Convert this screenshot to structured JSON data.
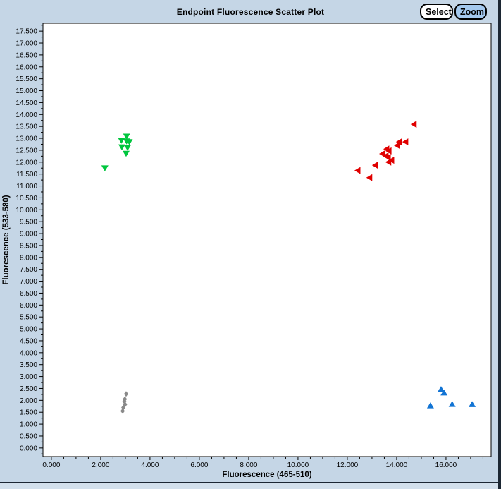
{
  "window": {
    "background": "#C5D6E6",
    "frame_border_color": "#1C2733",
    "bottom_strip_color": "#D3E0EC"
  },
  "header": {
    "title": "Endpoint Fluorescence Scatter Plot",
    "select_label": "Select",
    "zoom_label": "Zoom",
    "zoom_active_color": "#A4C9EE",
    "select_bg_color": "#FFFFFF"
  },
  "chart_data": {
    "type": "scatter",
    "title": "Endpoint Fluorescence Scatter Plot",
    "xlabel": "Fluorescence (465-510)",
    "ylabel": "Fluorescence (533-580)",
    "xlim": [
      -0.34,
      17.83
    ],
    "ylim": [
      -0.36,
      17.83
    ],
    "x_major_ticks": [
      0,
      2,
      4,
      6,
      8,
      10,
      12,
      14,
      16
    ],
    "y_major_ticks": [
      0,
      0.5,
      1,
      1.5,
      2,
      2.5,
      3,
      3.5,
      4,
      4.5,
      5,
      5.5,
      6,
      6.5,
      7,
      7.5,
      8,
      8.5,
      9,
      9.5,
      10,
      10.5,
      11,
      11.5,
      12,
      12.5,
      13,
      13.5,
      14,
      14.5,
      15,
      15.5,
      16,
      16.5,
      17,
      17.5
    ],
    "x_minor_step": 0.5,
    "y_minor_step": 0.25,
    "tick_decimals": 3,
    "grid": false,
    "legend": "none",
    "plot_bg": "#FFFFFF",
    "axis_color": "#000000",
    "series": [
      {
        "name": "green-cluster",
        "marker": "triangle-down",
        "color": "#00C63E",
        "points": [
          [
            3.05,
            13.09
          ],
          [
            2.84,
            12.92
          ],
          [
            3.05,
            12.89
          ],
          [
            3.16,
            12.86
          ],
          [
            2.86,
            12.64
          ],
          [
            3.09,
            12.62
          ],
          [
            3.03,
            12.37
          ],
          [
            2.17,
            11.76
          ]
        ]
      },
      {
        "name": "red-cluster",
        "marker": "triangle-left",
        "color": "#E00000",
        "points": [
          [
            14.71,
            13.59
          ],
          [
            14.37,
            12.85
          ],
          [
            14.11,
            12.85
          ],
          [
            14.03,
            12.7
          ],
          [
            13.6,
            12.55
          ],
          [
            13.69,
            12.47
          ],
          [
            13.43,
            12.35
          ],
          [
            13.57,
            12.26
          ],
          [
            13.66,
            12.2
          ],
          [
            13.68,
            12.0
          ],
          [
            13.8,
            12.08
          ],
          [
            13.14,
            11.87
          ],
          [
            12.43,
            11.65
          ],
          [
            12.91,
            11.35
          ]
        ]
      },
      {
        "name": "blue-cluster",
        "marker": "triangle-up",
        "color": "#1274D4",
        "points": [
          [
            15.8,
            2.45
          ],
          [
            15.92,
            2.31
          ],
          [
            15.37,
            1.77
          ],
          [
            16.25,
            1.83
          ],
          [
            17.06,
            1.82
          ]
        ]
      },
      {
        "name": "gray-cluster",
        "marker": "diamond",
        "color": "#8A8A8A",
        "points": [
          [
            3.03,
            2.27
          ],
          [
            2.98,
            2.05
          ],
          [
            2.96,
            1.95
          ],
          [
            2.99,
            1.83
          ],
          [
            2.92,
            1.7
          ],
          [
            2.89,
            1.55
          ]
        ]
      }
    ]
  }
}
